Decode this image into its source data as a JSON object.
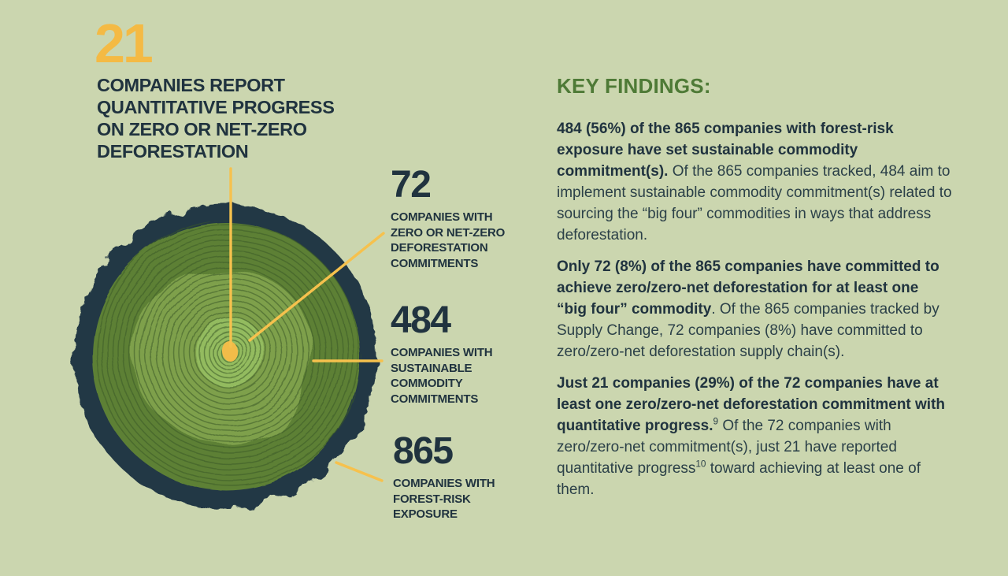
{
  "colors": {
    "background": "#cbd6af",
    "ink": "#20333f",
    "accent_yellow": "#f4ba44",
    "heading_green": "#4e7a36",
    "bark_navy": "#233845",
    "wood_dark_green": "#5d8036",
    "wood_mid_green": "#7ea04b",
    "wood_light_green": "#93bb5e"
  },
  "headline": {
    "number": "21",
    "lines": "COMPANIES REPORT\nQUANTITATIVE PROGRESS\nON ZERO OR NET-ZERO\nDEFORESTATION"
  },
  "callouts": [
    {
      "number": "72",
      "label": "COMPANIES WITH\nZERO OR NET-ZERO\nDEFORESTATION\nCOMMITMENTS"
    },
    {
      "number": "484",
      "label": "COMPANIES WITH\nSUSTAINABLE\nCOMMODITY\nCOMMITMENTS"
    },
    {
      "number": "865",
      "label": "COMPANIES WITH\nFOREST-RISK\nEXPOSURE"
    }
  ],
  "key_findings": {
    "heading": "KEY FINDINGS:",
    "paragraphs": [
      [
        {
          "text": "484 (56%) of the 865 companies with forest-risk exposure have set sustainable commodity commitment(s).",
          "bold": true
        },
        {
          "text": " Of the 865 companies tracked, 484 aim to implement sustainable commodity commitment(s) related to sourcing the “big four” commodities in ways that address deforestation."
        }
      ],
      [
        {
          "text": "Only 72 (8%) of the 865 companies have committed to achieve zero/zero-net deforestation for at least one “big four” commodity",
          "bold": true
        },
        {
          "text": ". Of the 865 companies tracked by Supply Change, 72 companies (8%) have committed to zero/zero-net deforestation supply chain(s)."
        }
      ],
      [
        {
          "text": "Just 21 companies (29%) of the 72 companies have at least one zero/zero-net deforestation commitment with quantitative progress.",
          "bold": true
        },
        {
          "text": "9",
          "sup": true
        },
        {
          "text": " Of the 72 companies with zero/zero-net commitment(s), just 21 have reported quantitative progress"
        },
        {
          "text": "10",
          "sup": true
        },
        {
          "text": " toward achieving at least one of them."
        }
      ]
    ]
  },
  "chart_data": {
    "type": "pie",
    "title": "21 companies report quantitative progress on zero or net-zero deforestation",
    "categories": [
      "Companies with forest-risk exposure",
      "Companies with sustainable commodity commitments",
      "Companies with zero or net-zero deforestation commitments",
      "Companies reporting quantitative progress on zero or net-zero deforestation"
    ],
    "values": [
      865,
      484,
      72,
      21
    ],
    "percent_of_parent": [
      "100%",
      "56%",
      "8%",
      "29%"
    ],
    "legend_position": "callouts-right",
    "note": "Nested tree-ring (stump cross-section) proportional diagram; each inner zone is a subset of the outer zone, with yellow leader lines to the callout numbers."
  }
}
